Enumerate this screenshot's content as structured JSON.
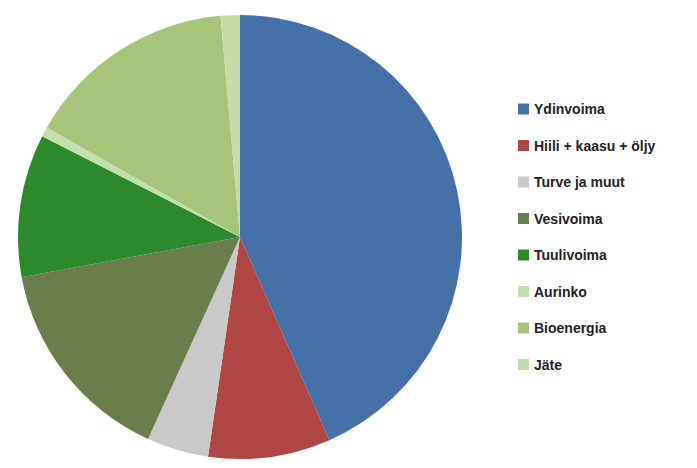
{
  "chart_data": {
    "type": "pie",
    "categories": [
      "Ydinvoima",
      "Hiili + kaasu + öljy",
      "Turve ja muut",
      "Vesivoima",
      "Tuulivoima",
      "Aurinko",
      "Bioenergia",
      "Jäte"
    ],
    "values": [
      43.4,
      8.9,
      4.5,
      15.3,
      10.4,
      0.7,
      15.4,
      1.4
    ],
    "colors": [
      "#4670a8",
      "#ae4744",
      "#c9c9c9",
      "#6a7d4a",
      "#2c8a2c",
      "#c4dfae",
      "#a6c47a",
      "#c6dca8"
    ],
    "legend": "right",
    "data_labels": false
  }
}
